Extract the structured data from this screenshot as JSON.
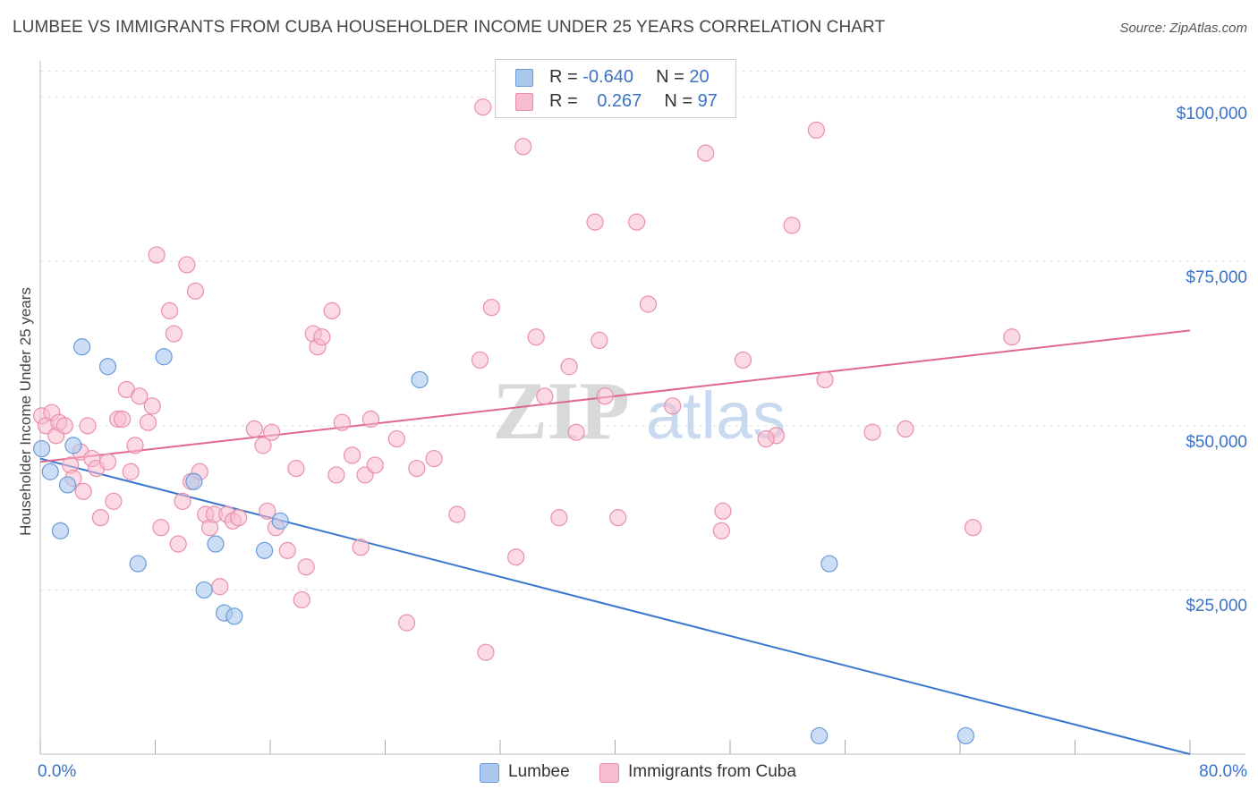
{
  "header": {
    "title": "LUMBEE VS IMMIGRANTS FROM CUBA HOUSEHOLDER INCOME UNDER 25 YEARS CORRELATION CHART",
    "source": "Source: ZipAtlas.com"
  },
  "legend_top": {
    "rows": [
      {
        "r_label": "R =",
        "r_value": "-0.640",
        "n_label": "N =",
        "n_value": "20"
      },
      {
        "r_label": "R =",
        "r_value": "0.267",
        "n_label": "N =",
        "n_value": "97"
      }
    ]
  },
  "legend_bottom": {
    "lumbee": "Lumbee",
    "cuba": "Immigrants from Cuba"
  },
  "watermark": {
    "zip": "ZIP",
    "atlas": "atlas"
  },
  "colors": {
    "lumbee_fill": "#aac8ee",
    "lumbee_stroke": "#6a9bd8",
    "lumbee_line": "#3a78d0",
    "cuba_fill": "#f7bccd",
    "cuba_stroke": "#e98fab",
    "cuba_line": "#e06890",
    "axis_text": "#3b72c4",
    "grid": "#e4e4e4"
  },
  "chart_data": {
    "type": "scatter",
    "title": "LUMBEE VS IMMIGRANTS FROM CUBA HOUSEHOLDER INCOME UNDER 25 YEARS CORRELATION CHART",
    "xlabel": "",
    "ylabel": "Householder Income Under 25 years",
    "xlim": [
      0,
      80
    ],
    "ylim": [
      0,
      105000
    ],
    "x_tick_labels": [
      {
        "value": 0,
        "label": "0.0%"
      },
      {
        "value": 80,
        "label": "80.0%"
      }
    ],
    "x_minor_ticks": [
      0,
      8,
      16,
      24,
      32,
      40,
      48,
      56,
      64,
      72,
      80
    ],
    "y_ticks": [
      {
        "value": 25000,
        "label": "$25,000"
      },
      {
        "value": 50000,
        "label": "$50,000"
      },
      {
        "value": 75000,
        "label": "$75,000"
      },
      {
        "value": 100000,
        "label": "$100,000"
      }
    ],
    "series": [
      {
        "name": "Lumbee",
        "R": -0.64,
        "N": 20,
        "trend": {
          "x0": 0,
          "y0": 45000,
          "x1": 80,
          "y1": 0
        },
        "points": [
          [
            0.1,
            46500
          ],
          [
            0.7,
            43000
          ],
          [
            1.4,
            34000
          ],
          [
            1.9,
            41000
          ],
          [
            2.3,
            47000
          ],
          [
            2.9,
            62000
          ],
          [
            4.7,
            59000
          ],
          [
            6.8,
            29000
          ],
          [
            8.6,
            60500
          ],
          [
            10.7,
            41500
          ],
          [
            11.4,
            25000
          ],
          [
            12.2,
            32000
          ],
          [
            12.8,
            21500
          ],
          [
            13.5,
            21000
          ],
          [
            15.6,
            31000
          ],
          [
            16.7,
            35500
          ],
          [
            26.4,
            57000
          ],
          [
            54.9,
            29000
          ],
          [
            54.2,
            2800
          ],
          [
            64.4,
            2800
          ]
        ]
      },
      {
        "name": "Immigrants from Cuba",
        "R": 0.267,
        "N": 97,
        "trend": {
          "x0": 0,
          "y0": 44500,
          "x1": 80,
          "y1": 64500
        },
        "points": [
          [
            0.1,
            51500
          ],
          [
            0.4,
            50000
          ],
          [
            0.8,
            52000
          ],
          [
            1.1,
            48500
          ],
          [
            1.3,
            50500
          ],
          [
            1.7,
            50000
          ],
          [
            2.1,
            44000
          ],
          [
            2.3,
            42000
          ],
          [
            2.8,
            46000
          ],
          [
            3.0,
            40000
          ],
          [
            3.3,
            50000
          ],
          [
            3.6,
            45000
          ],
          [
            3.9,
            43500
          ],
          [
            4.2,
            36000
          ],
          [
            4.7,
            44500
          ],
          [
            5.1,
            38500
          ],
          [
            5.4,
            51000
          ],
          [
            5.7,
            51000
          ],
          [
            6.0,
            55500
          ],
          [
            6.3,
            43000
          ],
          [
            6.6,
            47000
          ],
          [
            6.9,
            54500
          ],
          [
            7.5,
            50500
          ],
          [
            7.8,
            53000
          ],
          [
            8.1,
            76000
          ],
          [
            8.4,
            34500
          ],
          [
            9.0,
            67500
          ],
          [
            9.3,
            64000
          ],
          [
            9.6,
            32000
          ],
          [
            9.9,
            38500
          ],
          [
            10.2,
            74500
          ],
          [
            10.8,
            70500
          ],
          [
            10.5,
            41500
          ],
          [
            11.1,
            43000
          ],
          [
            11.5,
            36500
          ],
          [
            11.8,
            34500
          ],
          [
            12.1,
            36500
          ],
          [
            12.5,
            25500
          ],
          [
            13.0,
            36500
          ],
          [
            13.4,
            35500
          ],
          [
            13.8,
            36000
          ],
          [
            14.9,
            49500
          ],
          [
            15.5,
            47000
          ],
          [
            15.8,
            37000
          ],
          [
            16.1,
            49000
          ],
          [
            16.4,
            34500
          ],
          [
            17.2,
            31000
          ],
          [
            17.8,
            43500
          ],
          [
            18.2,
            23500
          ],
          [
            18.5,
            28500
          ],
          [
            19.0,
            64000
          ],
          [
            19.3,
            62000
          ],
          [
            19.6,
            63500
          ],
          [
            20.3,
            67500
          ],
          [
            20.6,
            42500
          ],
          [
            21.0,
            50500
          ],
          [
            21.7,
            45500
          ],
          [
            22.3,
            31500
          ],
          [
            22.6,
            42500
          ],
          [
            23.0,
            51000
          ],
          [
            23.3,
            44000
          ],
          [
            24.8,
            48000
          ],
          [
            25.5,
            20000
          ],
          [
            26.2,
            43500
          ],
          [
            27.4,
            45000
          ],
          [
            29.0,
            36500
          ],
          [
            30.6,
            60000
          ],
          [
            31.0,
            15500
          ],
          [
            31.4,
            68000
          ],
          [
            30.8,
            98500
          ],
          [
            33.1,
            30000
          ],
          [
            33.6,
            92500
          ],
          [
            34.5,
            63500
          ],
          [
            35.1,
            54500
          ],
          [
            36.1,
            36000
          ],
          [
            36.8,
            59000
          ],
          [
            37.3,
            49000
          ],
          [
            38.6,
            81000
          ],
          [
            38.9,
            63000
          ],
          [
            39.3,
            54500
          ],
          [
            40.2,
            36000
          ],
          [
            41.5,
            81000
          ],
          [
            42.3,
            68500
          ],
          [
            44.0,
            53000
          ],
          [
            46.3,
            91500
          ],
          [
            47.5,
            37000
          ],
          [
            47.4,
            34000
          ],
          [
            48.9,
            60000
          ],
          [
            51.2,
            48500
          ],
          [
            52.3,
            80500
          ],
          [
            54.0,
            95000
          ],
          [
            54.6,
            57000
          ],
          [
            57.9,
            49000
          ],
          [
            60.2,
            49500
          ],
          [
            64.9,
            34500
          ],
          [
            67.6,
            63500
          ],
          [
            50.5,
            48000
          ]
        ]
      }
    ]
  }
}
